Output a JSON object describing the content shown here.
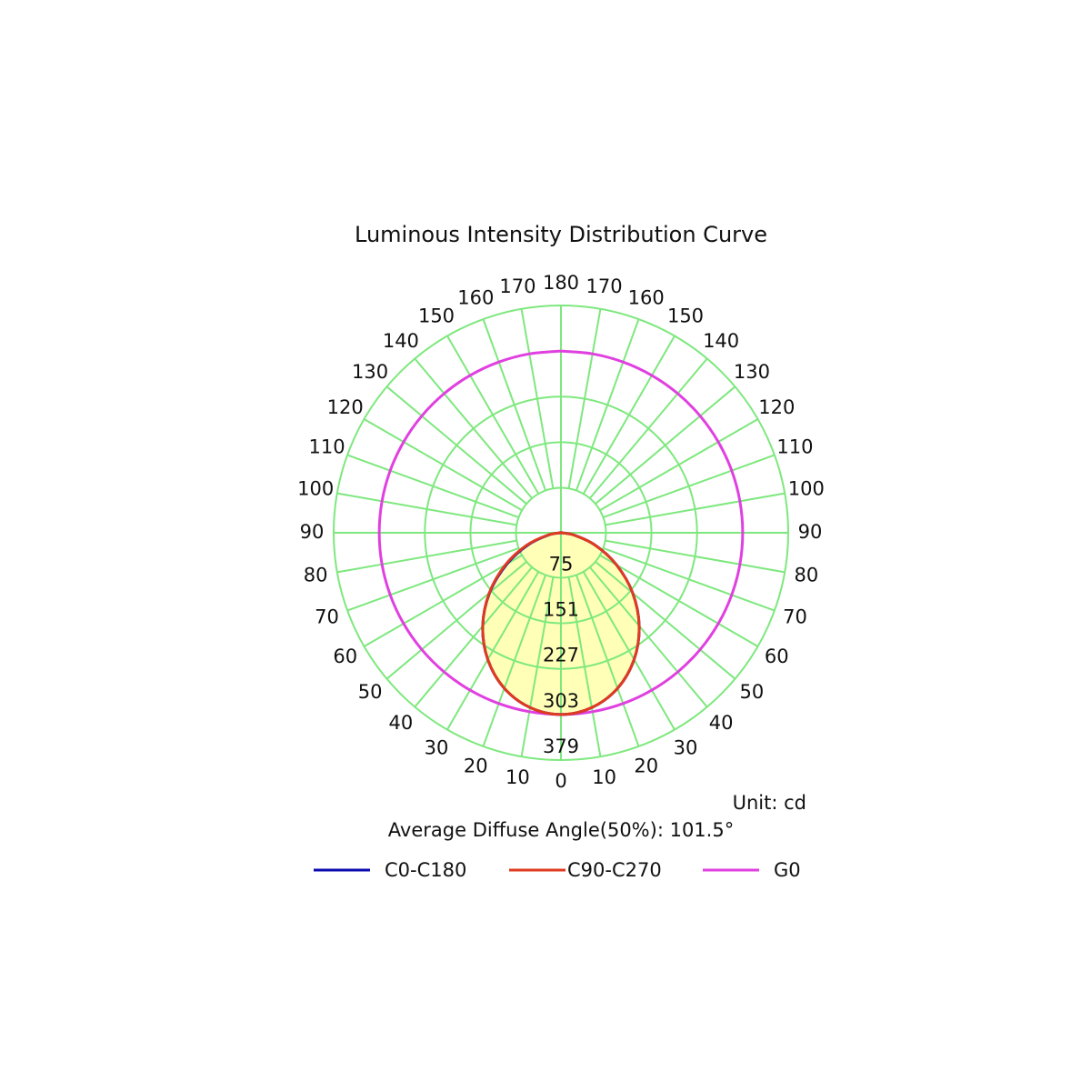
{
  "chart_data": {
    "type": "polar",
    "title": "Luminous Intensity Distribution Curve",
    "unit_label": "Unit: cd",
    "annotation": "Average Diffuse Angle(50%): 101.5°",
    "x": [
      -180,
      -170,
      -160,
      -150,
      -140,
      -130,
      -120,
      -110,
      -100,
      -90,
      -80,
      -70,
      -60,
      -50,
      -40,
      -30,
      -20,
      -10,
      0,
      10,
      20,
      30,
      40,
      50,
      60,
      70,
      80,
      90,
      100,
      110,
      120,
      130,
      140,
      150,
      160,
      170,
      180
    ],
    "series": [
      {
        "name": "C0-C180",
        "color": "#0a0ab0",
        "values": [
          0,
          0,
          0,
          0,
          0,
          0,
          0,
          0,
          0,
          0,
          21,
          58,
          104,
          155,
          203,
          244,
          276,
          296,
          303,
          296,
          276,
          244,
          203,
          156,
          107,
          61,
          22,
          0,
          0,
          0,
          0,
          0,
          0,
          0,
          0,
          0,
          0
        ]
      },
      {
        "name": "C90-C270",
        "color": "#e03a20",
        "values": [
          0,
          0,
          0,
          0,
          0,
          0,
          0,
          0,
          0,
          0,
          22,
          61,
          107,
          156,
          203,
          244,
          276,
          296,
          303,
          296,
          276,
          244,
          203,
          156,
          107,
          61,
          22,
          0,
          0,
          0,
          0,
          0,
          0,
          0,
          0,
          0,
          0
        ]
      },
      {
        "name": "G0",
        "color": "#e040e0",
        "values": [
          303,
          303,
          303,
          303,
          303,
          303,
          303,
          303,
          303,
          303,
          303,
          303,
          303,
          303,
          303,
          303,
          303,
          303,
          303,
          303,
          303,
          303,
          303,
          303,
          303,
          303,
          303,
          303,
          303,
          303,
          303,
          303,
          303,
          303,
          303,
          303,
          303
        ]
      }
    ],
    "fill_color": "#ffffb8",
    "grid_color": "#7ee87e",
    "ylim": [
      0,
      379
    ],
    "yticks": [
      75,
      151,
      227,
      303,
      379
    ],
    "xticks": [
      {
        "value": -170,
        "label": "170"
      },
      {
        "value": -160,
        "label": "160"
      },
      {
        "value": -150,
        "label": "150"
      },
      {
        "value": -140,
        "label": "140"
      },
      {
        "value": -130,
        "label": "130"
      },
      {
        "value": -120,
        "label": "120"
      },
      {
        "value": -110,
        "label": "110"
      },
      {
        "value": -100,
        "label": "100"
      },
      {
        "value": -90,
        "label": "90"
      },
      {
        "value": -80,
        "label": "80"
      },
      {
        "value": -70,
        "label": "70"
      },
      {
        "value": -60,
        "label": "60"
      },
      {
        "value": -50,
        "label": "50"
      },
      {
        "value": -40,
        "label": "40"
      },
      {
        "value": -30,
        "label": "30"
      },
      {
        "value": -20,
        "label": "20"
      },
      {
        "value": -10,
        "label": "10"
      },
      {
        "value": 0,
        "label": "0"
      },
      {
        "value": 10,
        "label": "10"
      },
      {
        "value": 20,
        "label": "20"
      },
      {
        "value": 30,
        "label": "30"
      },
      {
        "value": 40,
        "label": "40"
      },
      {
        "value": 50,
        "label": "50"
      },
      {
        "value": 60,
        "label": "60"
      },
      {
        "value": 70,
        "label": "70"
      },
      {
        "value": 80,
        "label": "80"
      },
      {
        "value": 90,
        "label": "90"
      },
      {
        "value": 100,
        "label": "100"
      },
      {
        "value": 110,
        "label": "110"
      },
      {
        "value": 120,
        "label": "120"
      },
      {
        "value": 130,
        "label": "130"
      },
      {
        "value": 140,
        "label": "140"
      },
      {
        "value": 150,
        "label": "150"
      },
      {
        "value": 160,
        "label": "160"
      },
      {
        "value": 170,
        "label": "170"
      },
      {
        "value": 180,
        "label": "180"
      }
    ]
  }
}
